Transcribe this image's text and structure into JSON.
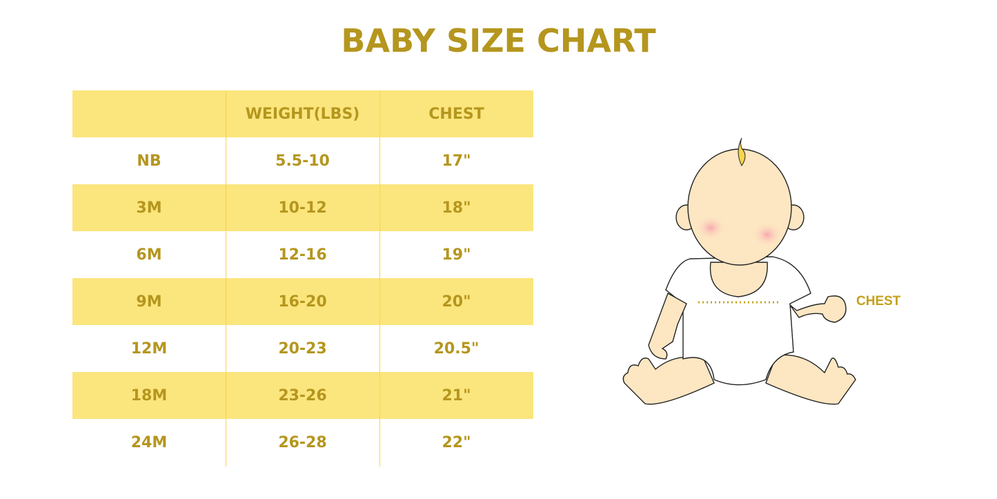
{
  "title": "BABY SIZE CHART",
  "table": {
    "headers": [
      "",
      "WEIGHT(LBS)",
      "CHEST"
    ],
    "rows": [
      [
        "NB",
        "5.5-10",
        "17\""
      ],
      [
        "3M",
        "10-12",
        "18\""
      ],
      [
        "6M",
        "12-16",
        "19\""
      ],
      [
        "9M",
        "16-20",
        "20\""
      ],
      [
        "12M",
        "20-23",
        "20.5\""
      ],
      [
        "18M",
        "23-26",
        "21\""
      ],
      [
        "24M",
        "26-28",
        "22\""
      ]
    ]
  },
  "illustration": {
    "chest_label": "CHEST"
  },
  "colors": {
    "accent_text": "#b5961e",
    "stripe": "#fbe57d",
    "skin": "#fde6c2"
  }
}
